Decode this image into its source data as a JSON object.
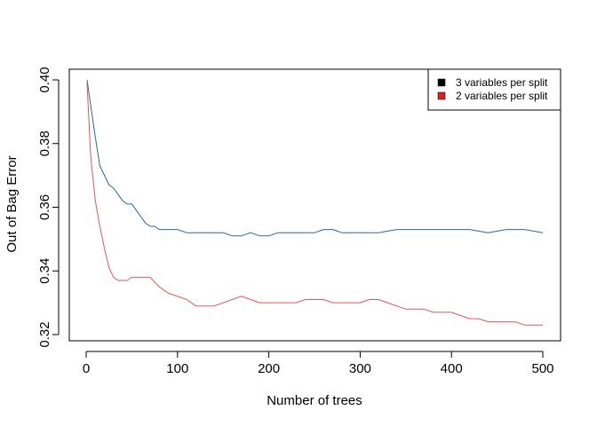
{
  "chart_data": {
    "type": "line",
    "title": "",
    "xlabel": "Number of trees",
    "ylabel": "Out of Bag Error",
    "xlim": [
      0,
      500
    ],
    "ylim": [
      0.32,
      0.4
    ],
    "xticks": [
      0,
      100,
      200,
      300,
      400,
      500
    ],
    "xtick_labels": [
      "0",
      "100",
      "200",
      "300",
      "400",
      "500"
    ],
    "yticks": [
      0.32,
      0.34,
      0.36,
      0.38,
      0.4
    ],
    "ytick_labels": [
      "0.32",
      "0.34",
      "0.36",
      "0.38",
      "0.40"
    ],
    "grid": false,
    "legend_position": "top-right",
    "legend": [
      {
        "label": "3 variables per split",
        "swatch_color": "#000000"
      },
      {
        "label": "2 variables per split",
        "swatch_color": "#e41a1c"
      }
    ],
    "series": [
      {
        "name": "3 variables per split",
        "color": "#2b6a96",
        "x": [
          1,
          5,
          10,
          15,
          20,
          25,
          30,
          35,
          40,
          45,
          50,
          55,
          60,
          65,
          70,
          75,
          80,
          90,
          100,
          110,
          120,
          130,
          140,
          150,
          160,
          170,
          180,
          190,
          200,
          210,
          220,
          230,
          240,
          250,
          260,
          270,
          280,
          290,
          300,
          320,
          340,
          360,
          380,
          400,
          420,
          440,
          460,
          480,
          500
        ],
        "y": [
          0.4,
          0.392,
          0.382,
          0.373,
          0.37,
          0.367,
          0.366,
          0.364,
          0.362,
          0.361,
          0.361,
          0.359,
          0.357,
          0.355,
          0.354,
          0.354,
          0.353,
          0.353,
          0.353,
          0.352,
          0.352,
          0.352,
          0.352,
          0.352,
          0.351,
          0.351,
          0.352,
          0.351,
          0.351,
          0.352,
          0.352,
          0.352,
          0.352,
          0.352,
          0.353,
          0.353,
          0.352,
          0.352,
          0.352,
          0.352,
          0.353,
          0.353,
          0.353,
          0.353,
          0.353,
          0.352,
          0.353,
          0.353,
          0.352
        ]
      },
      {
        "name": "2 variables per split",
        "color": "#e8565a",
        "x": [
          1,
          5,
          10,
          15,
          20,
          25,
          30,
          35,
          40,
          45,
          50,
          60,
          70,
          80,
          90,
          100,
          110,
          120,
          130,
          140,
          150,
          160,
          170,
          180,
          190,
          200,
          210,
          220,
          230,
          240,
          250,
          260,
          270,
          280,
          290,
          300,
          310,
          320,
          330,
          340,
          350,
          360,
          370,
          380,
          390,
          400,
          410,
          420,
          430,
          440,
          450,
          460,
          470,
          480,
          490,
          500
        ],
        "y": [
          0.399,
          0.376,
          0.362,
          0.354,
          0.347,
          0.341,
          0.338,
          0.337,
          0.337,
          0.337,
          0.338,
          0.338,
          0.338,
          0.335,
          0.333,
          0.332,
          0.331,
          0.329,
          0.329,
          0.329,
          0.33,
          0.331,
          0.332,
          0.331,
          0.33,
          0.33,
          0.33,
          0.33,
          0.33,
          0.331,
          0.331,
          0.331,
          0.33,
          0.33,
          0.33,
          0.33,
          0.331,
          0.331,
          0.33,
          0.329,
          0.328,
          0.328,
          0.328,
          0.327,
          0.327,
          0.327,
          0.326,
          0.325,
          0.325,
          0.324,
          0.324,
          0.324,
          0.324,
          0.323,
          0.323,
          0.323
        ]
      }
    ]
  }
}
